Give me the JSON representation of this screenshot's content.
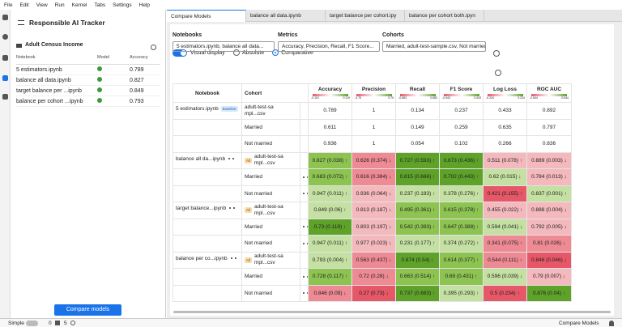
{
  "menu": [
    "File",
    "Edit",
    "View",
    "Run",
    "Kernel",
    "Tabs",
    "Settings",
    "Help"
  ],
  "sidebar": {
    "title": "Responsible AI Tracker",
    "project": "Adult Census Income",
    "columns": [
      "Notebook",
      "Model",
      "Accuracy"
    ],
    "notebooks": [
      {
        "name": "5 estimators.ipynb",
        "accuracy": 0.789
      },
      {
        "name": "balance all data.ipynb",
        "accuracy": 0.827
      },
      {
        "name": "target balance per ...ipynb",
        "accuracy": 0.849
      },
      {
        "name": "balance per cohort ...ipynb",
        "accuracy": 0.793
      }
    ],
    "button": "Compare models"
  },
  "tabs": [
    "Compare Models",
    "balance all data.ipynb",
    "target balance per cohort.ipy",
    "balance per cohort both.ipyn"
  ],
  "filters": [
    {
      "label": "Notebooks",
      "value": "5 estimators.ipynb, balance all data..."
    },
    {
      "label": "Metrics",
      "value": "Accuracy, Precision, Recall, F1 Score..."
    },
    {
      "label": "Cohorts",
      "value": "Married, adult-test-sample.csv, Not married..."
    }
  ],
  "view": {
    "toggle": "Visual display",
    "options": [
      "Absolute",
      "Comparative"
    ],
    "selected": 1
  },
  "table": {
    "columns": [
      "Notebook",
      "Cohort"
    ],
    "baseline_badge": "baseline",
    "all_badge": "All",
    "metrics": [
      {
        "name": "Accuracy",
        "min": -0.119,
        "max": 0.119
      },
      {
        "name": "Precision",
        "min": -0.75,
        "max": 0.75
      },
      {
        "name": "Recall",
        "min": -0.683,
        "max": 0.683
      },
      {
        "name": "F1 Score",
        "min": -0.443,
        "max": 0.443
      },
      {
        "name": "Log Loss",
        "min": -0.224,
        "max": 0.224
      },
      {
        "name": "ROC AUC",
        "min": -0.644,
        "max": 0.644
      }
    ],
    "groups": [
      {
        "notebook": "5 estimators.ipynb",
        "baseline": true,
        "rows": [
          {
            "cohort": "adult-test-sampl...csv",
            "cells": [
              {
                "text": "0.789"
              },
              {
                "text": "1"
              },
              {
                "text": "0.134"
              },
              {
                "text": "0.237"
              },
              {
                "text": "0.433"
              },
              {
                "text": "0.892"
              }
            ]
          },
          {
            "cohort": "Married",
            "cells": [
              {
                "text": "0.611"
              },
              {
                "text": "1"
              },
              {
                "text": "0.149"
              },
              {
                "text": "0.259"
              },
              {
                "text": "0.635"
              },
              {
                "text": "0.797"
              }
            ]
          },
          {
            "cohort": "Not married",
            "cells": [
              {
                "text": "0.936"
              },
              {
                "text": "1"
              },
              {
                "text": "0.054"
              },
              {
                "text": "0.102"
              },
              {
                "text": "0.266"
              },
              {
                "text": "0.836"
              }
            ]
          }
        ]
      },
      {
        "notebook": "balance all da...ipynb",
        "baseline": false,
        "rows": [
          {
            "cohort": "adult-test-sampl...csv",
            "cells": [
              {
                "text": "0.827 (0.038) ↑",
                "color": "#8dc351"
              },
              {
                "text": "0.626 (0.374) ↓",
                "color": "#ee8a93"
              },
              {
                "text": "0.727 (0.593) ↑",
                "color": "#5ea229"
              },
              {
                "text": "0.673 (0.436) ↑",
                "color": "#5ea229"
              },
              {
                "text": "0.511 (0.078) ↑",
                "color": "#f4b9bd"
              },
              {
                "text": "0.889 (0.003) ↓",
                "color": "#f4b9bd"
              }
            ]
          },
          {
            "cohort": "Married",
            "cells": [
              {
                "text": "0.683 (0.072) ↑",
                "color": "#8dc351"
              },
              {
                "text": "0.616 (0.384) ↓",
                "color": "#ee8a93"
              },
              {
                "text": "0.815 (0.666) ↑",
                "color": "#5ea229"
              },
              {
                "text": "0.702 (0.443) ↑",
                "color": "#5ea229"
              },
              {
                "text": "0.62 (0.015) ↓",
                "color": "#c4e0a2"
              },
              {
                "text": "0.784 (0.013) ↓",
                "color": "#f4b9bd"
              }
            ]
          },
          {
            "cohort": "Not married",
            "cells": [
              {
                "text": "0.947 (0.011) ↑",
                "color": "#c4e0a2"
              },
              {
                "text": "0.936 (0.064) ↓",
                "color": "#f4b9bd"
              },
              {
                "text": "0.237 (0.183) ↑",
                "color": "#c4e0a2"
              },
              {
                "text": "0.378 (0.276) ↑",
                "color": "#c4e0a2"
              },
              {
                "text": "0.421 (0.155) ↑",
                "color": "#e65767"
              },
              {
                "text": "0.837 (0.001) ↑",
                "color": "#c4e0a2"
              }
            ]
          }
        ]
      },
      {
        "notebook": "target balance...ipynb",
        "baseline": false,
        "rows": [
          {
            "cohort": "adult-test-sampl...csv",
            "cells": [
              {
                "text": "0.849 (0.06) ↑",
                "color": "#c4e0a2"
              },
              {
                "text": "0.813 (0.187) ↓",
                "color": "#f4b9bd"
              },
              {
                "text": "0.495 (0.361) ↑",
                "color": "#8dc351"
              },
              {
                "text": "0.615 (0.378) ↑",
                "color": "#8dc351"
              },
              {
                "text": "0.455 (0.022) ↑",
                "color": "#f4b9bd"
              },
              {
                "text": "0.888 (0.004) ↓",
                "color": "#f4b9bd"
              }
            ]
          },
          {
            "cohort": "Married",
            "cells": [
              {
                "text": "0.73 (0.119) ↑",
                "color": "#5ea229"
              },
              {
                "text": "0.803 (0.197) ↓",
                "color": "#f4b9bd"
              },
              {
                "text": "0.542 (0.393) ↑",
                "color": "#8dc351"
              },
              {
                "text": "0.647 (0.388) ↑",
                "color": "#8dc351"
              },
              {
                "text": "0.594 (0.041) ↓",
                "color": "#c4e0a2"
              },
              {
                "text": "0.792 (0.005) ↓",
                "color": "#f4b9bd"
              }
            ]
          },
          {
            "cohort": "Not married",
            "cells": [
              {
                "text": "0.947 (0.011) ↑",
                "color": "#c4e0a2"
              },
              {
                "text": "0.977 (0.023) ↓",
                "color": "#f4b9bd"
              },
              {
                "text": "0.231 (0.177) ↑",
                "color": "#c4e0a2"
              },
              {
                "text": "0.374 (0.272) ↑",
                "color": "#c4e0a2"
              },
              {
                "text": "0.341 (0.075) ↑",
                "color": "#ee8a93"
              },
              {
                "text": "0.81 (0.026) ↓",
                "color": "#ee8a93"
              }
            ]
          }
        ]
      },
      {
        "notebook": "balance per co...ipynb",
        "baseline": false,
        "rows": [
          {
            "cohort": "adult-test-sampl...csv",
            "cells": [
              {
                "text": "0.793 (0.004) ↑",
                "color": "#c4e0a2"
              },
              {
                "text": "0.563 (0.437) ↓",
                "color": "#ee8a93"
              },
              {
                "text": "0.674 (0.54) ↑",
                "color": "#5ea229"
              },
              {
                "text": "0.614 (0.377) ↑",
                "color": "#8dc351"
              },
              {
                "text": "0.544 (0.111) ↑",
                "color": "#ee8a93"
              },
              {
                "text": "0.846 (0.046) ↓",
                "color": "#e65767"
              }
            ]
          },
          {
            "cohort": "Married",
            "cells": [
              {
                "text": "0.728 (0.117) ↑",
                "color": "#8dc351"
              },
              {
                "text": "0.72 (0.28) ↓",
                "color": "#ee8a93"
              },
              {
                "text": "0.663 (0.514) ↑",
                "color": "#8dc351"
              },
              {
                "text": "0.69 (0.431) ↑",
                "color": "#8dc351"
              },
              {
                "text": "0.596 (0.039) ↓",
                "color": "#c4e0a2"
              },
              {
                "text": "0.79 (0.007) ↓",
                "color": "#f4b9bd"
              }
            ]
          },
          {
            "cohort": "Not married",
            "cells": [
              {
                "text": "0.846 (0.09) ↓",
                "color": "#ee8a93"
              },
              {
                "text": "0.27 (0.73) ↓",
                "color": "#e65767"
              },
              {
                "text": "0.737 (0.683) ↑",
                "color": "#5ea229"
              },
              {
                "text": "0.395 (0.293) ↑",
                "color": "#c4e0a2"
              },
              {
                "text": "0.5 (0.234) ↑",
                "color": "#e65767"
              },
              {
                "text": "0.876 (0.04) ↑",
                "color": "#5ea229"
              }
            ]
          }
        ]
      }
    ]
  },
  "status": {
    "mode": "Simple",
    "terminals": 0,
    "kernels": 5,
    "activity": "Compare Models"
  }
}
